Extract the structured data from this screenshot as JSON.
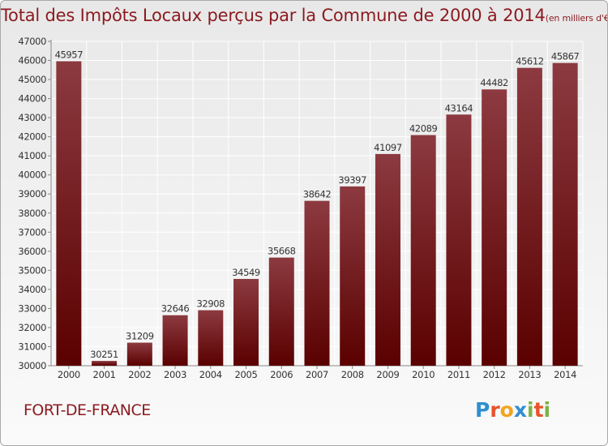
{
  "title": "Total des Impôts Locaux perçus par la Commune de 2000 à 2014",
  "title_unit": "(en milliers d'€)",
  "city": "FORT-DE-FRANCE",
  "logo": {
    "letters": [
      "P",
      "r",
      "o",
      "x",
      "i",
      "t",
      "i"
    ],
    "colors": [
      "#2f8fd0",
      "#e9522c",
      "#f2a41e",
      "#2f8fd0",
      "#7cb342",
      "#e9522c",
      "#7cb342"
    ]
  },
  "colors": {
    "bar_top": "#8c3a40",
    "bar_bottom": "#5a0000",
    "accent": "#8b1a1f"
  },
  "chart_data": {
    "type": "bar",
    "categories": [
      "2000",
      "2001",
      "2002",
      "2003",
      "2004",
      "2005",
      "2006",
      "2007",
      "2008",
      "2009",
      "2010",
      "2011",
      "2012",
      "2013",
      "2014"
    ],
    "values": [
      45957,
      30251,
      31209,
      32646,
      32908,
      34549,
      35668,
      38642,
      39397,
      41097,
      42089,
      43164,
      44482,
      45612,
      45867
    ],
    "yticks": [
      30000,
      31000,
      32000,
      33000,
      34000,
      35000,
      36000,
      37000,
      38000,
      39000,
      40000,
      41000,
      42000,
      43000,
      44000,
      45000,
      46000,
      47000
    ],
    "ylim": [
      30000,
      47000
    ],
    "grid": true,
    "legend": "none"
  }
}
